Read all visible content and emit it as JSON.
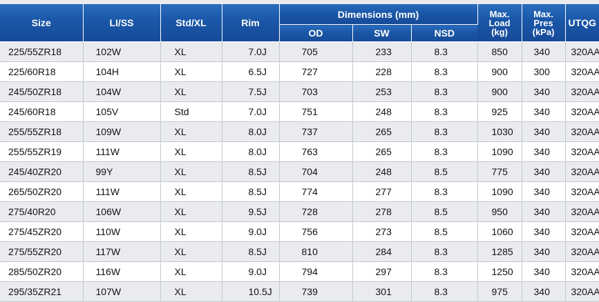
{
  "table": {
    "headers": {
      "size": "Size",
      "li_ss": "LI/SS",
      "std_xl": "Std/XL",
      "rim": "Rim",
      "dimensions": "Dimensions (mm)",
      "od": "OD",
      "sw": "SW",
      "nsd": "NSD",
      "max_load": [
        "Max.",
        "Load",
        "(kg)"
      ],
      "max_pres": [
        "Max.",
        "Pres",
        "(kPa)"
      ],
      "utqg": "UTQG"
    },
    "rows": [
      {
        "size": "225/55ZR18",
        "li_ss": "102W",
        "std_xl": "XL",
        "rim": "7.0J",
        "od": "705",
        "sw": "233",
        "nsd": "8.3",
        "max_load": "850",
        "max_pres": "340",
        "utqg": "320AA"
      },
      {
        "size": "225/60R18",
        "li_ss": "104H",
        "std_xl": "XL",
        "rim": "6.5J",
        "od": "727",
        "sw": "228",
        "nsd": "8.3",
        "max_load": "900",
        "max_pres": "300",
        "utqg": "320AA"
      },
      {
        "size": "245/50ZR18",
        "li_ss": "104W",
        "std_xl": "XL",
        "rim": "7.5J",
        "od": "703",
        "sw": "253",
        "nsd": "8.3",
        "max_load": "900",
        "max_pres": "340",
        "utqg": "320AA"
      },
      {
        "size": "245/60R18",
        "li_ss": "105V",
        "std_xl": "Std",
        "rim": "7.0J",
        "od": "751",
        "sw": "248",
        "nsd": "8.3",
        "max_load": "925",
        "max_pres": "340",
        "utqg": "320AA"
      },
      {
        "size": "255/55ZR18",
        "li_ss": "109W",
        "std_xl": "XL",
        "rim": "8.0J",
        "od": "737",
        "sw": "265",
        "nsd": "8.3",
        "max_load": "1030",
        "max_pres": "340",
        "utqg": "320AA"
      },
      {
        "size": "255/55ZR19",
        "li_ss": "111W",
        "std_xl": "XL",
        "rim": "8.0J",
        "od": "763",
        "sw": "265",
        "nsd": "8.3",
        "max_load": "1090",
        "max_pres": "340",
        "utqg": "320AA"
      },
      {
        "size": "245/40ZR20",
        "li_ss": "99Y",
        "std_xl": "XL",
        "rim": "8.5J",
        "od": "704",
        "sw": "248",
        "nsd": "8.5",
        "max_load": "775",
        "max_pres": "340",
        "utqg": "320AA"
      },
      {
        "size": "265/50ZR20",
        "li_ss": "111W",
        "std_xl": "XL",
        "rim": "8.5J",
        "od": "774",
        "sw": "277",
        "nsd": "8.3",
        "max_load": "1090",
        "max_pres": "340",
        "utqg": "320AA"
      },
      {
        "size": "275/40R20",
        "li_ss": "106W",
        "std_xl": "XL",
        "rim": "9.5J",
        "od": "728",
        "sw": "278",
        "nsd": "8.5",
        "max_load": "950",
        "max_pres": "340",
        "utqg": "320AA"
      },
      {
        "size": "275/45ZR20",
        "li_ss": "110W",
        "std_xl": "XL",
        "rim": "9.0J",
        "od": "756",
        "sw": "273",
        "nsd": "8.5",
        "max_load": "1060",
        "max_pres": "340",
        "utqg": "320AA"
      },
      {
        "size": "275/55ZR20",
        "li_ss": "117W",
        "std_xl": "XL",
        "rim": "8.5J",
        "od": "810",
        "sw": "284",
        "nsd": "8.3",
        "max_load": "1285",
        "max_pres": "340",
        "utqg": "320AA"
      },
      {
        "size": "285/50ZR20",
        "li_ss": "116W",
        "std_xl": "XL",
        "rim": "9.0J",
        "od": "794",
        "sw": "297",
        "nsd": "8.3",
        "max_load": "1250",
        "max_pres": "340",
        "utqg": "320AA"
      },
      {
        "size": "295/35ZR21",
        "li_ss": "107W",
        "std_xl": "XL",
        "rim": "10.5J",
        "od": "739",
        "sw": "301",
        "nsd": "8.3",
        "max_load": "975",
        "max_pres": "340",
        "utqg": "320AA"
      }
    ]
  },
  "colors": {
    "header_blue": "#1a56a7",
    "header_text": "#ffffff",
    "row_shade": "#e9ebef",
    "row_plain": "#ffffff",
    "grid_line": "#c3c6cc"
  }
}
